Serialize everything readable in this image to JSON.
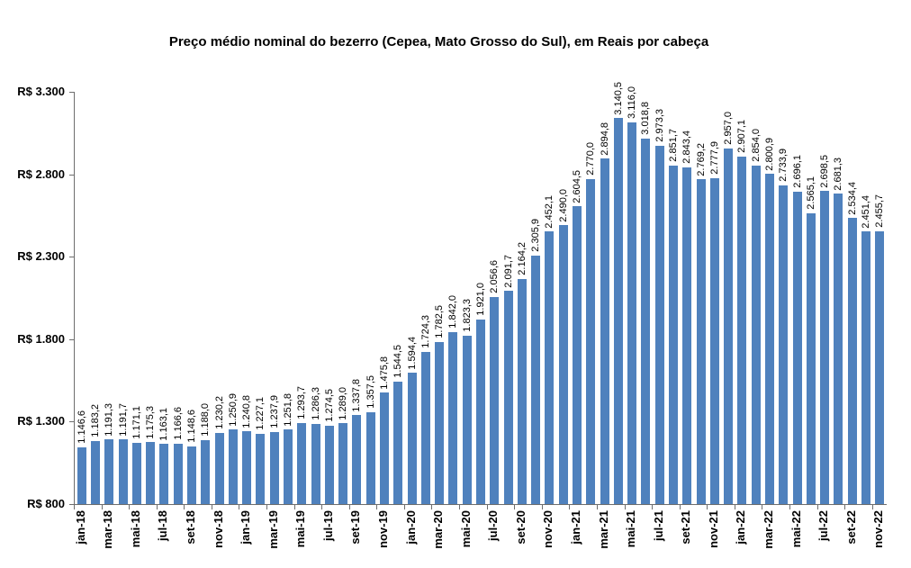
{
  "chart_data": {
    "type": "bar",
    "title": "Preço médio nominal do bezerro (Cepea, Mato Grosso do Sul), em Reais por cabeça",
    "bar_color": "#4F81BD",
    "grid": false,
    "legend": false,
    "y_axis": {
      "min": 800,
      "max": 3300,
      "step": 500,
      "tick_labels": [
        "R$ 800",
        "R$ 1.300",
        "R$ 1.800",
        "R$ 2.300",
        "R$ 2.800",
        "R$ 3.300"
      ]
    },
    "x_tick_labels": [
      "jan-18",
      "mar-18",
      "mai-18",
      "jul-18",
      "set-18",
      "nov-18",
      "jan-19",
      "mar-19",
      "mai-19",
      "jul-19",
      "set-19",
      "nov-19",
      "jan-20",
      "mar-20",
      "mai-20",
      "jul-20",
      "set-20",
      "nov-20",
      "jan-21",
      "mar-21",
      "mai-21",
      "jul-21",
      "set-21",
      "nov-21",
      "jan-22",
      "mar-22",
      "mai-22",
      "jul-22",
      "set-22",
      "nov-22"
    ],
    "series": [
      {
        "point_labels": [
          "1.146,6",
          "1.183,2",
          "1.191,3",
          "1.191,7",
          "1.171,1",
          "1.175,3",
          "1.163,1",
          "1.166,6",
          "1.148,6",
          "1.188,0",
          "1.230,2",
          "1.250,9",
          "1.240,8",
          "1.227,1",
          "1.237,9",
          "1.251,8",
          "1.293,7",
          "1.286,3",
          "1.274,5",
          "1.289,0",
          "1.337,8",
          "1.357,5",
          "1.475,8",
          "1.544,5",
          "1.594,4",
          "1.724,3",
          "1.782,5",
          "1.842,0",
          "1.823,3",
          "1.921,0",
          "2.056,6",
          "2.091,7",
          "2.164,2",
          "2.305,9",
          "2.452,1",
          "2.490,0",
          "2.604,5",
          "2.770,0",
          "2.894,8",
          "3.140,5",
          "3.116,0",
          "3.018,8",
          "2.973,3",
          "2.851,7",
          "2.843,4",
          "2.769,2",
          "2.777,9",
          "2.957,0",
          "2.907,1",
          "2.854,0",
          "2.800,9",
          "2.733,9",
          "2.696,1",
          "2.565,1",
          "2.698,5",
          "2.681,3",
          "2.534,4",
          "2.451,4",
          "2.455,7"
        ],
        "values": [
          1146.6,
          1183.2,
          1191.3,
          1191.7,
          1171.1,
          1175.3,
          1163.1,
          1166.6,
          1148.6,
          1188.0,
          1230.2,
          1250.9,
          1240.8,
          1227.1,
          1237.9,
          1251.8,
          1293.7,
          1286.3,
          1274.5,
          1289.0,
          1337.8,
          1357.5,
          1475.8,
          1544.5,
          1594.4,
          1724.3,
          1782.5,
          1842.0,
          1823.3,
          1921.0,
          2056.6,
          2091.7,
          2164.2,
          2305.9,
          2452.1,
          2490.0,
          2604.5,
          2770.0,
          2894.8,
          3140.5,
          3116.0,
          3018.8,
          2973.3,
          2851.7,
          2843.4,
          2769.2,
          2777.9,
          2957.0,
          2907.1,
          2854.0,
          2800.9,
          2733.9,
          2696.1,
          2565.1,
          2698.5,
          2681.3,
          2534.4,
          2451.4,
          2455.7
        ]
      }
    ]
  }
}
